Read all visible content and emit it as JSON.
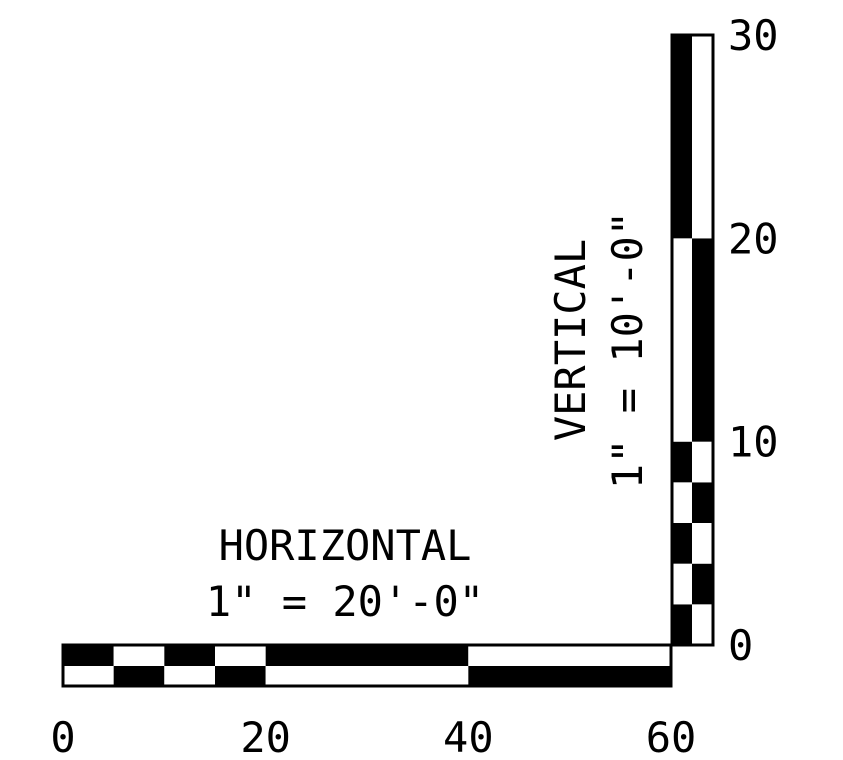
{
  "horizontal": {
    "title": "HORIZONTAL",
    "scale": "1\" = 20'-0\"",
    "ticks": [
      {
        "value": 0,
        "label": "0"
      },
      {
        "value": 20,
        "label": "20"
      },
      {
        "value": 40,
        "label": "40"
      },
      {
        "value": 60,
        "label": "60"
      }
    ],
    "divisions": [
      0,
      5,
      10,
      15,
      20,
      40,
      60
    ]
  },
  "vertical": {
    "title": "VERTICAL",
    "scale": "1\" = 10'-0\"",
    "ticks": [
      {
        "value": 0,
        "label": "0"
      },
      {
        "value": 10,
        "label": "10"
      },
      {
        "value": 20,
        "label": "20"
      },
      {
        "value": 30,
        "label": "30"
      }
    ],
    "divisions": [
      0,
      2,
      4,
      6,
      8,
      10,
      20,
      30
    ]
  },
  "colors": {
    "ink": "#000000",
    "paper": "#ffffff"
  }
}
